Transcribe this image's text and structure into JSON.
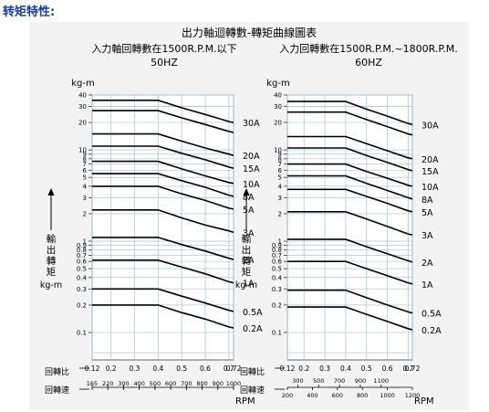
{
  "page_title": "转矩特性:",
  "figure_title": "出力軸迴轉數-轉矩曲線圖表",
  "y_unit_top": "kg-m",
  "y_label": "輸出轉矩",
  "y_label_unit": "kg-m",
  "ratio_label": "回轉比",
  "speed_label": "回轉速",
  "rpm_label": "RPM",
  "colors": {
    "title": "#1a3d8f",
    "grid": "#a8c8e0",
    "curve": "#000000",
    "panel": "#f3f3f3"
  },
  "chart_data": [
    {
      "type": "line",
      "title": "入力軸回轉數在1500R.P.M.以下",
      "subtitle": "50HZ",
      "y_scale": "log",
      "ylim": [
        0.05,
        40
      ],
      "y_ticks": [
        "40",
        "30",
        "20",
        "10",
        "9",
        "8",
        "7",
        "6",
        "5",
        "4",
        "3",
        "2",
        "1",
        "0.9",
        "0.8",
        "0.7",
        "0.6",
        "0.5",
        "0.4",
        "0.3",
        "0.2",
        "0.1"
      ],
      "ratio_ticks": [
        "0.12",
        "0.2",
        "0.3",
        "0.4",
        "0.5",
        "0.6",
        "0.7",
        "0.72"
      ],
      "speed_ticks": [
        "165",
        "220",
        "300",
        "400",
        "500",
        "600",
        "700",
        "800",
        "900",
        "1000"
      ],
      "x": [
        0.12,
        0.2,
        0.3,
        0.4,
        0.5,
        0.6,
        0.7,
        0.72
      ],
      "series": [
        {
          "name": "30A",
          "values": [
            35,
            35,
            35,
            35,
            29,
            24.5,
            20.5,
            20
          ]
        },
        {
          "name": "30A",
          "values": [
            27,
            27,
            27,
            27,
            22.5,
            19,
            16,
            15.5
          ]
        },
        {
          "name": "20A",
          "values": [
            15,
            15,
            15,
            15,
            12.5,
            10.5,
            9,
            8.7
          ]
        },
        {
          "name": "15A",
          "values": [
            11,
            11,
            11,
            11,
            9.2,
            7.8,
            6.5,
            6.3
          ]
        },
        {
          "name": "10A",
          "values": [
            7.5,
            7.5,
            7.5,
            7.5,
            6.2,
            5.2,
            4.4,
            4.3
          ]
        },
        {
          "name": "8A",
          "values": [
            5.5,
            5.5,
            5.5,
            5.5,
            4.6,
            3.9,
            3.2,
            3.1
          ]
        },
        {
          "name": "5A",
          "values": [
            4,
            4,
            4,
            4,
            3.3,
            2.8,
            2.3,
            2.25
          ]
        },
        {
          "name": "3A",
          "values": [
            2.2,
            2.2,
            2.2,
            2.2,
            1.8,
            1.5,
            1.3,
            1.25
          ]
        },
        {
          "name": "2A",
          "values": [
            1.1,
            1.1,
            1.1,
            1.1,
            0.92,
            0.78,
            0.65,
            0.63
          ]
        },
        {
          "name": "1A",
          "values": [
            0.62,
            0.62,
            0.62,
            0.62,
            0.52,
            0.44,
            0.36,
            0.35
          ]
        },
        {
          "name": "0.5A",
          "values": [
            0.3,
            0.3,
            0.3,
            0.3,
            0.25,
            0.21,
            0.175,
            0.17
          ]
        },
        {
          "name": "0.2A",
          "values": [
            0.2,
            0.2,
            0.2,
            0.2,
            0.165,
            0.14,
            0.115,
            0.112
          ]
        }
      ],
      "curve_labels": [
        "30A",
        "20A",
        "15A",
        "10A",
        "8A",
        "5A",
        "3A",
        "2A",
        "1A",
        "0.5A",
        "0.2A"
      ]
    },
    {
      "type": "line",
      "title": "入力回轉數在1500R.P.M.~1800R.P.M.",
      "subtitle": "60HZ",
      "y_scale": "log",
      "ylim": [
        0.05,
        40
      ],
      "y_ticks": [
        "40",
        "30",
        "20",
        "10",
        "9",
        "8",
        "7",
        "6",
        "5",
        "4",
        "3",
        "2",
        "1",
        "0.9",
        "0.8",
        "0.7",
        "0.6",
        "0.5",
        "0.4",
        "0.3",
        "0.2",
        "0.1"
      ],
      "ratio_ticks": [
        "0.12",
        "0.2",
        "0.3",
        "0.4",
        "0.5",
        "0.6",
        "0.7",
        "0.72"
      ],
      "speed_ticks_upper": [
        "300",
        "500",
        "700",
        "900",
        "1100"
      ],
      "speed_ticks_lower": [
        "200",
        "400",
        "600",
        "800",
        "1000",
        "1200"
      ],
      "x": [
        0.12,
        0.2,
        0.3,
        0.4,
        0.5,
        0.6,
        0.7,
        0.72
      ],
      "series": [
        {
          "name": "30A",
          "values": [
            34,
            34,
            34,
            34,
            28,
            23.5,
            19.5,
            19
          ]
        },
        {
          "name": "30A",
          "values": [
            26,
            26,
            26,
            26,
            21.5,
            18,
            15,
            14.6
          ]
        },
        {
          "name": "20A",
          "values": [
            14,
            14,
            14,
            14,
            11.7,
            9.8,
            8.2,
            8
          ]
        },
        {
          "name": "15A",
          "values": [
            10.5,
            10.5,
            10.5,
            10.5,
            8.7,
            7.3,
            6.1,
            5.9
          ]
        },
        {
          "name": "10A",
          "values": [
            7,
            7,
            7,
            7,
            5.8,
            4.9,
            4.1,
            4
          ]
        },
        {
          "name": "8A",
          "values": [
            5.2,
            5.2,
            5.2,
            5.2,
            4.3,
            3.6,
            3,
            2.9
          ]
        },
        {
          "name": "5A",
          "values": [
            3.7,
            3.7,
            3.7,
            3.7,
            3.1,
            2.6,
            2.15,
            2.1
          ]
        },
        {
          "name": "3A",
          "values": [
            2.1,
            2.1,
            2.1,
            2.1,
            1.75,
            1.45,
            1.2,
            1.17
          ]
        },
        {
          "name": "2A",
          "values": [
            1.05,
            1.05,
            1.05,
            1.05,
            0.87,
            0.73,
            0.61,
            0.59
          ]
        },
        {
          "name": "1A",
          "values": [
            0.6,
            0.6,
            0.6,
            0.6,
            0.5,
            0.42,
            0.35,
            0.34
          ]
        },
        {
          "name": "0.5A",
          "values": [
            0.29,
            0.29,
            0.29,
            0.29,
            0.24,
            0.2,
            0.168,
            0.163
          ]
        },
        {
          "name": "0.2A",
          "values": [
            0.19,
            0.19,
            0.19,
            0.19,
            0.158,
            0.132,
            0.11,
            0.107
          ]
        }
      ],
      "curve_labels": [
        "30A",
        "20A",
        "15A",
        "10A",
        "8A",
        "5A",
        "3A",
        "2A",
        "1A",
        "0.5A",
        "0.2A"
      ]
    }
  ]
}
